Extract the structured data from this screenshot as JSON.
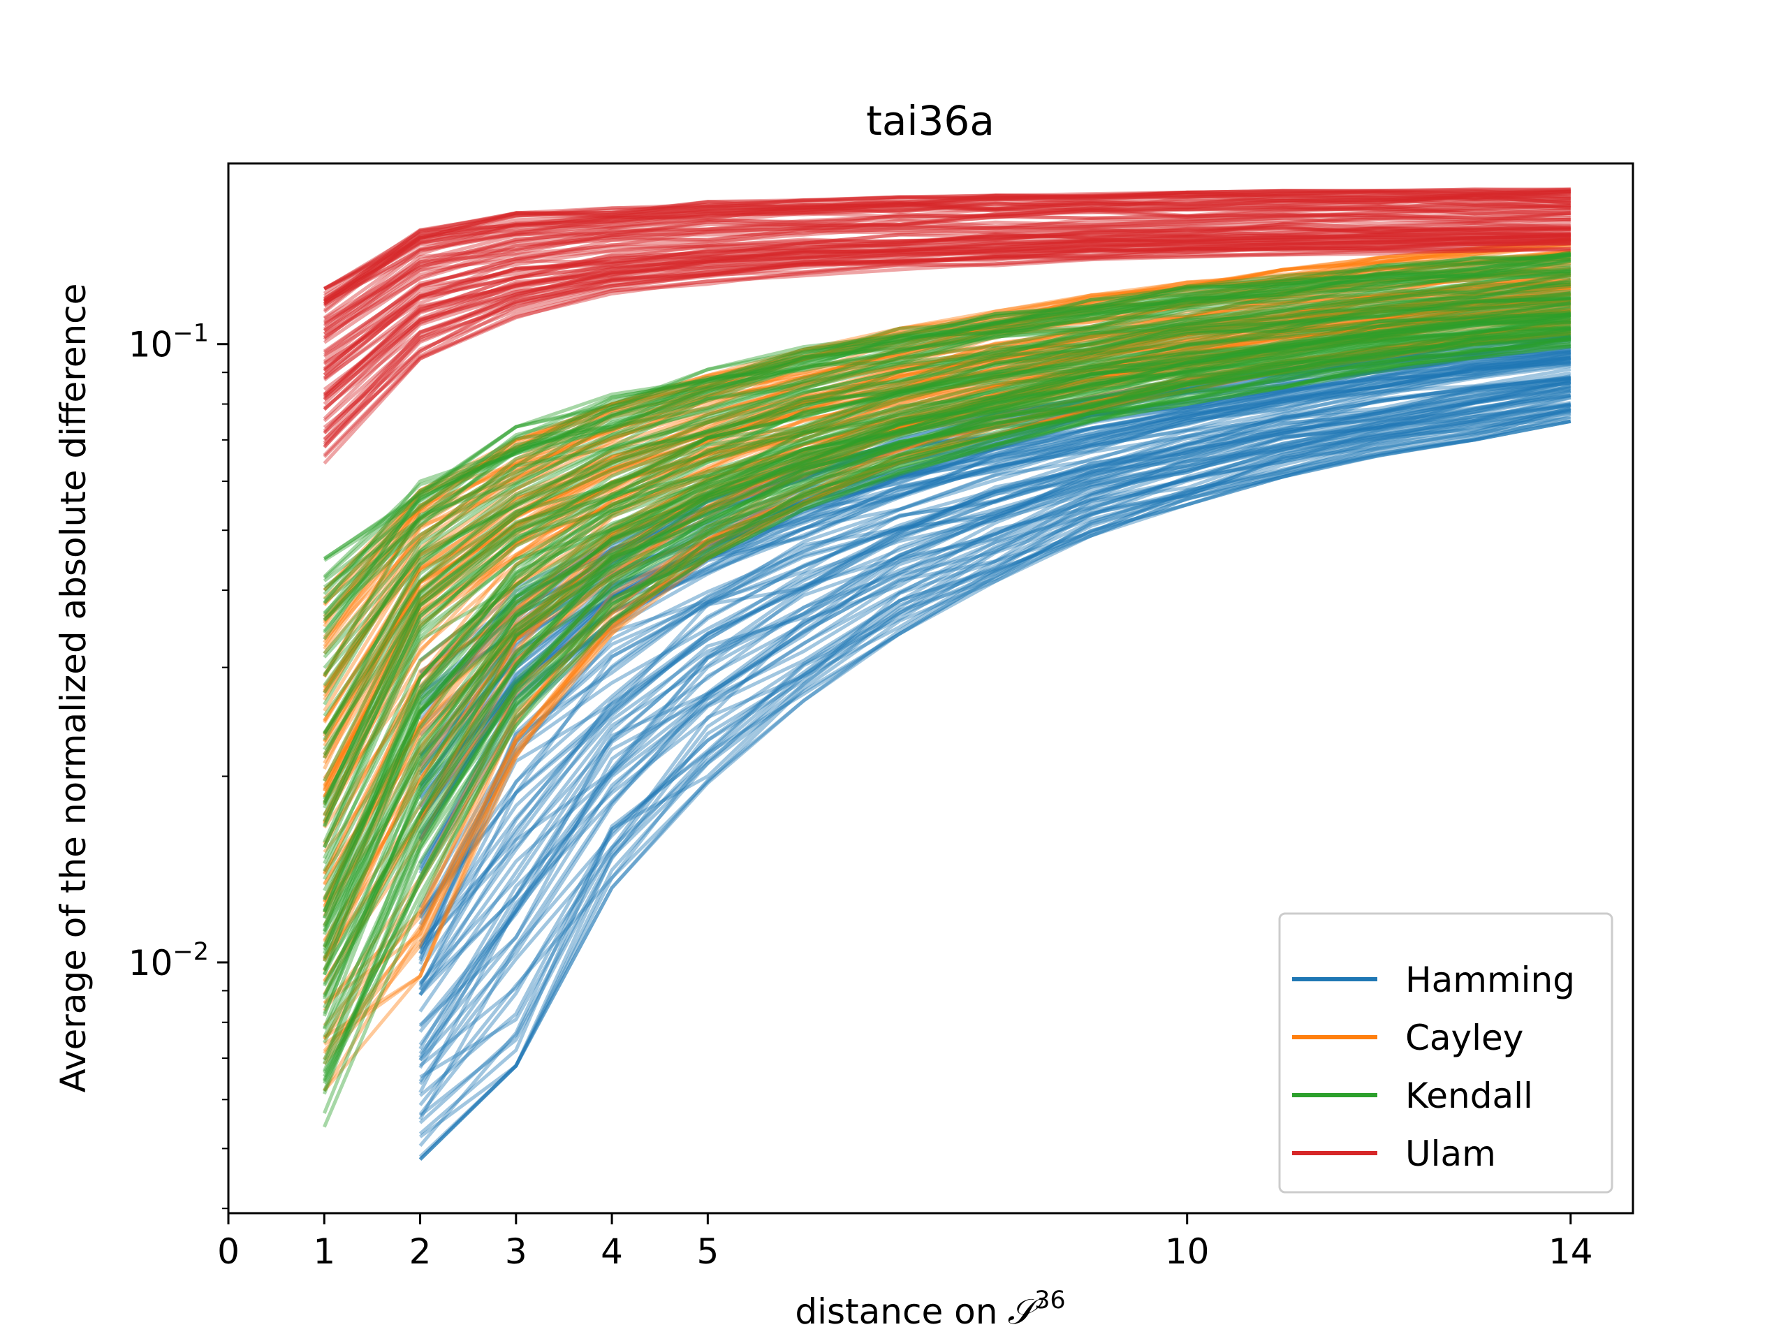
{
  "chart_data": {
    "type": "line",
    "title": "tai36a",
    "xlabel": "distance on",
    "xlabel_symbol": "𝒮",
    "xlabel_superscript": "36",
    "ylabel": "Average of the normalized absolute difference",
    "xlim": [
      0,
      14.65
    ],
    "ylim": [
      0.00393,
      0.196
    ],
    "yscale": "log",
    "xticks": [
      0,
      1,
      2,
      3,
      4,
      5,
      10,
      14
    ],
    "xtick_labels": [
      "0",
      "1",
      "2",
      "3",
      "4",
      "5",
      "10",
      "14"
    ],
    "yticks": [
      0.01,
      0.1
    ],
    "ytick_labels": [
      {
        "base": "10",
        "exp": "−2"
      },
      {
        "base": "10",
        "exp": "−1"
      }
    ],
    "grid": false,
    "legend_position": "lower-right",
    "series": [
      {
        "name": "Hamming",
        "color": "#1f77b4",
        "x": [
          2,
          3,
          4,
          5,
          6,
          7,
          8,
          9,
          10,
          11,
          12,
          13,
          14
        ],
        "median": [
          0.0125,
          0.0235,
          0.0325,
          0.0395,
          0.0465,
          0.053,
          0.059,
          0.065,
          0.0705,
          0.076,
          0.081,
          0.0855,
          0.09
        ],
        "low": [
          0.0048,
          0.0068,
          0.0132,
          0.0195,
          0.0265,
          0.034,
          0.041,
          0.049,
          0.055,
          0.061,
          0.066,
          0.07,
          0.075
        ],
        "high": [
          0.031,
          0.0405,
          0.0495,
          0.0575,
          0.065,
          0.0715,
          0.0775,
          0.083,
          0.088,
          0.093,
          0.0975,
          0.101,
          0.105
        ],
        "line_count": 100
      },
      {
        "name": "Cayley",
        "color": "#ff7f0e",
        "x": [
          1,
          2,
          3,
          4,
          5,
          6,
          7,
          8,
          9,
          10,
          11,
          12,
          13,
          14
        ],
        "median": [
          0.0175,
          0.0355,
          0.047,
          0.057,
          0.066,
          0.074,
          0.082,
          0.089,
          0.095,
          0.101,
          0.107,
          0.112,
          0.117,
          0.121
        ],
        "low": [
          0.0062,
          0.0095,
          0.0215,
          0.034,
          0.045,
          0.055,
          0.064,
          0.071,
          0.078,
          0.084,
          0.09,
          0.095,
          0.1,
          0.104
        ],
        "high": [
          0.04,
          0.058,
          0.07,
          0.08,
          0.089,
          0.098,
          0.106,
          0.113,
          0.12,
          0.126,
          0.132,
          0.138,
          0.143,
          0.148
        ],
        "line_count": 100
      },
      {
        "name": "Kendall",
        "color": "#2ca02c",
        "x": [
          1,
          2,
          3,
          4,
          5,
          6,
          7,
          8,
          9,
          10,
          11,
          12,
          13,
          14
        ],
        "median": [
          0.016,
          0.034,
          0.0455,
          0.0555,
          0.0645,
          0.0725,
          0.08,
          0.0865,
          0.0925,
          0.098,
          0.103,
          0.108,
          0.112,
          0.116
        ],
        "low": [
          0.0053,
          0.0125,
          0.024,
          0.0355,
          0.045,
          0.054,
          0.0615,
          0.068,
          0.074,
          0.08,
          0.085,
          0.09,
          0.095,
          0.099
        ],
        "high": [
          0.045,
          0.06,
          0.0735,
          0.083,
          0.091,
          0.099,
          0.106,
          0.112,
          0.118,
          0.124,
          0.129,
          0.134,
          0.138,
          0.142
        ],
        "line_count": 100
      },
      {
        "name": "Ulam",
        "color": "#d62728",
        "x": [
          1,
          2,
          3,
          4,
          5,
          6,
          7,
          8,
          9,
          10,
          11,
          12,
          13,
          14
        ],
        "median": [
          0.09,
          0.119,
          0.13,
          0.136,
          0.14,
          0.143,
          0.145,
          0.147,
          0.149,
          0.15,
          0.151,
          0.152,
          0.153,
          0.154
        ],
        "low": [
          0.063,
          0.092,
          0.11,
          0.12,
          0.125,
          0.129,
          0.132,
          0.134,
          0.136,
          0.138,
          0.139,
          0.14,
          0.141,
          0.142
        ],
        "high": [
          0.123,
          0.153,
          0.163,
          0.166,
          0.17,
          0.171,
          0.173,
          0.174,
          0.175,
          0.176,
          0.177,
          0.177,
          0.178,
          0.178
        ],
        "line_count": 80
      }
    ]
  }
}
